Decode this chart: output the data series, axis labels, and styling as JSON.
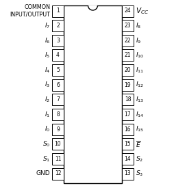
{
  "left_pins": [
    {
      "num": 1,
      "label": "COMMON_IO"
    },
    {
      "num": 2,
      "label": "I7"
    },
    {
      "num": 3,
      "label": "I6"
    },
    {
      "num": 4,
      "label": "I5"
    },
    {
      "num": 5,
      "label": "I4"
    },
    {
      "num": 6,
      "label": "I3"
    },
    {
      "num": 7,
      "label": "I2"
    },
    {
      "num": 8,
      "label": "I1"
    },
    {
      "num": 9,
      "label": "I0"
    },
    {
      "num": 10,
      "label": "S0"
    },
    {
      "num": 11,
      "label": "S1"
    },
    {
      "num": 12,
      "label": "GND"
    }
  ],
  "right_pins": [
    {
      "num": 24,
      "label": "VCC"
    },
    {
      "num": 23,
      "label": "I8"
    },
    {
      "num": 22,
      "label": "I9"
    },
    {
      "num": 21,
      "label": "I10"
    },
    {
      "num": 20,
      "label": "I11"
    },
    {
      "num": 19,
      "label": "I12"
    },
    {
      "num": 18,
      "label": "I13"
    },
    {
      "num": 17,
      "label": "I14"
    },
    {
      "num": 16,
      "label": "I15"
    },
    {
      "num": 15,
      "label": "E_bar"
    },
    {
      "num": 14,
      "label": "S2"
    },
    {
      "num": 13,
      "label": "S3"
    }
  ],
  "bg_color": "white",
  "body_color": "white",
  "border_color": "black"
}
